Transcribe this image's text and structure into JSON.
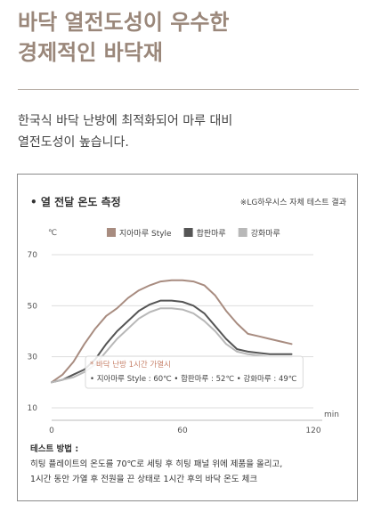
{
  "headline": {
    "line1": "바닥 열전도성이 우수한",
    "line2": "경제적인 바닥재"
  },
  "intro": {
    "line1": "한국식 바닥 난방에 최적화되어 마루 대비",
    "line2": "열전도성이 높습니다."
  },
  "panel": {
    "title": "• 열 전달 온도 측정",
    "note": "※LG하우시스 자체 테스트 결과"
  },
  "method": {
    "title": "테스트 방법 :",
    "line1": "히팅 플레이트의 온도를 70℃로 세팅 후 히팅 패널 위에 제품을 올리고,",
    "line2": "1시간 동안 가열 후 전원을 끈 상태로 1시간 후의 바닥 온도 체크"
  },
  "chart_data": {
    "type": "line",
    "ylabel": "℃",
    "xlabel": "min",
    "xlim": [
      0,
      120
    ],
    "ylim": [
      10,
      70
    ],
    "xticks": [
      0,
      60,
      120
    ],
    "yticks": [
      10,
      30,
      50,
      70
    ],
    "grid": true,
    "legend_position": "top",
    "annotation": {
      "title": "* 바닥 난방 1시간 가열시",
      "text": "• 지아마루 Style : 60℃  • 합판마루 : 52℃  • 강화마루 : 49℃"
    },
    "series": [
      {
        "name": "지아마루 Style",
        "color": "#a88c80",
        "x": [
          0,
          5,
          10,
          15,
          20,
          25,
          30,
          35,
          40,
          45,
          50,
          55,
          60,
          65,
          70,
          75,
          80,
          85,
          90,
          95,
          100,
          105,
          110
        ],
        "y": [
          20,
          23,
          28,
          35,
          41,
          46,
          49,
          53,
          56,
          58,
          59.5,
          60,
          60,
          59.5,
          58,
          54,
          48,
          43,
          39,
          38,
          37,
          36,
          35
        ]
      },
      {
        "name": "합판마루",
        "color": "#555555",
        "x": [
          0,
          5,
          10,
          15,
          20,
          25,
          30,
          35,
          40,
          45,
          50,
          55,
          60,
          65,
          70,
          75,
          80,
          85,
          90,
          95,
          100,
          105,
          110
        ],
        "y": [
          20,
          21,
          23,
          25,
          29,
          35,
          40,
          44,
          48,
          50.5,
          52,
          52,
          51.5,
          50,
          47,
          42,
          37,
          33,
          32,
          31.5,
          31,
          31,
          31
        ]
      },
      {
        "name": "강화마루",
        "color": "#b8b8b8",
        "x": [
          0,
          5,
          10,
          15,
          20,
          25,
          30,
          35,
          40,
          45,
          50,
          55,
          60,
          65,
          70,
          75,
          80,
          85,
          90,
          95,
          100,
          105,
          110
        ],
        "y": [
          20,
          21,
          22,
          24,
          27,
          32,
          37,
          41,
          45,
          47.5,
          49,
          49,
          48.5,
          47,
          44,
          40,
          35,
          32,
          31,
          30.5,
          30,
          30,
          30
        ]
      }
    ]
  }
}
